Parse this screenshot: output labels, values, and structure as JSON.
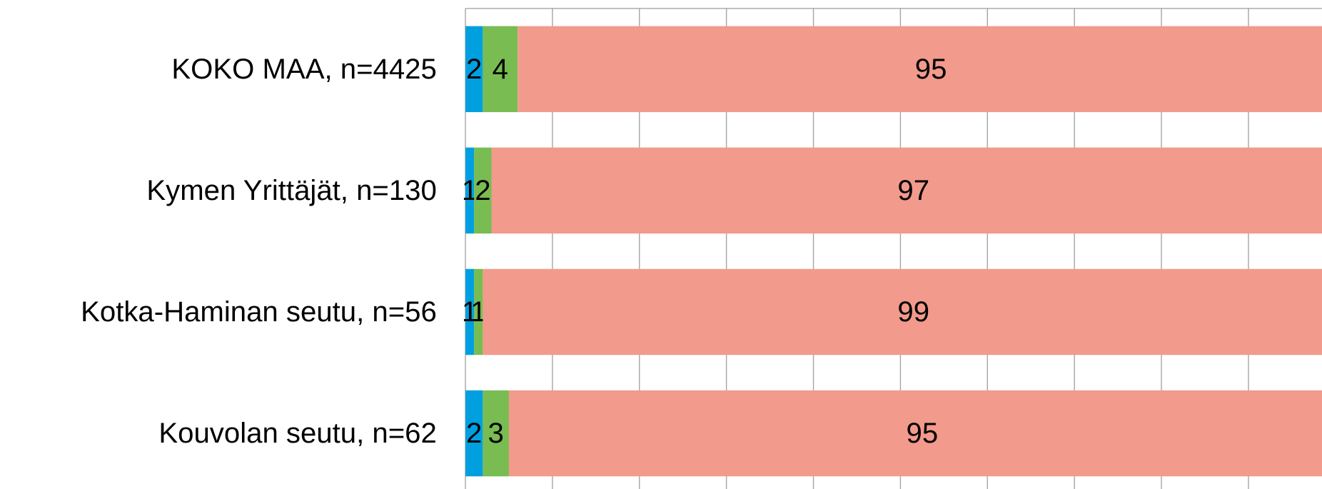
{
  "chart_data": {
    "type": "stacked-bar-horizontal",
    "categories": [
      "KOKO MAA, n=4425",
      "Kymen Yrittäjät, n=130",
      "Kotka-Haminan seutu, n=56",
      "Kouvolan seutu, n=62"
    ],
    "series": [
      {
        "color": "#00a0e0",
        "values": [
          2,
          1,
          1,
          2
        ]
      },
      {
        "color": "#78bc52",
        "values": [
          4,
          2,
          1,
          3
        ]
      },
      {
        "color": "#f29a8b",
        "values": [
          95,
          97,
          99,
          95
        ]
      }
    ],
    "xlim": [
      0,
      100
    ],
    "xticks": [
      0,
      10,
      20,
      30,
      40,
      50,
      60,
      70,
      80,
      90
    ],
    "grid": true
  }
}
